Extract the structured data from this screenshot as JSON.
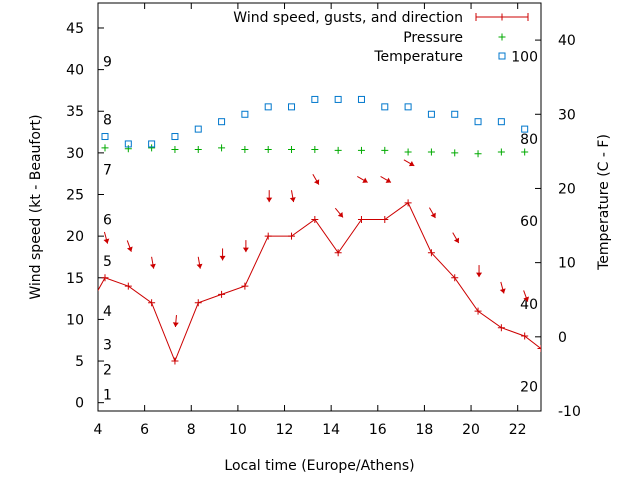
{
  "chart_data": {
    "type": "line",
    "xlabel": "Local time (Europe/Athens)",
    "ylabel": "Wind speed (kt - Beaufort)",
    "y2label": "Temperature (C - F)",
    "xlim": [
      4,
      23
    ],
    "ylim": [
      -1,
      48
    ],
    "y2lim": [
      -10,
      45
    ],
    "x_ticks": [
      4,
      6,
      8,
      10,
      12,
      14,
      16,
      18,
      20,
      22
    ],
    "y_ticks": [
      0,
      5,
      10,
      15,
      20,
      25,
      30,
      35,
      40,
      45
    ],
    "y2_ticks": [
      -10,
      0,
      10,
      20,
      30,
      40
    ],
    "beaufort_labels": [
      {
        "label": "1",
        "kt": 1
      },
      {
        "label": "2",
        "kt": 4
      },
      {
        "label": "3",
        "kt": 7
      },
      {
        "label": "4",
        "kt": 11
      },
      {
        "label": "5",
        "kt": 17
      },
      {
        "label": "6",
        "kt": 22
      },
      {
        "label": "7",
        "kt": 28
      },
      {
        "label": "8",
        "kt": 34
      },
      {
        "label": "9",
        "kt": 41
      }
    ],
    "fahrenheit_labels": [
      {
        "label": "20",
        "celsius": -6.7
      },
      {
        "label": "40",
        "celsius": 4.4
      },
      {
        "label": "60",
        "celsius": 15.6
      },
      {
        "label": "80",
        "celsius": 26.7
      },
      {
        "label": "100",
        "celsius": 37.8
      }
    ],
    "legend_position": "top-right",
    "series": [
      {
        "name": "Wind speed, gusts, and direction",
        "color": "#cc0000",
        "marker": "plus-line",
        "axis": "left",
        "x": [
          3.7,
          4.3,
          5.3,
          6.3,
          7.3,
          8.3,
          9.3,
          10.3,
          11.3,
          12.3,
          13.3,
          14.3,
          15.3,
          16.3,
          17.3,
          18.3,
          19.3,
          20.3,
          21.3,
          22.3,
          23.0
        ],
        "values": [
          12,
          15,
          14,
          12,
          5,
          12,
          13,
          14,
          20,
          20,
          22,
          18,
          22,
          22,
          24,
          18,
          15,
          11,
          9,
          8,
          6.5
        ]
      },
      {
        "name": "Pressure",
        "color": "#00aa00",
        "marker": "plus",
        "axis": "left",
        "x": [
          4.3,
          5.3,
          6.3,
          7.3,
          8.3,
          9.3,
          10.3,
          11.3,
          12.3,
          13.3,
          14.3,
          15.3,
          16.3,
          17.3,
          18.3,
          19.3,
          20.3,
          21.3,
          22.3
        ],
        "values": [
          30.6,
          30.5,
          30.6,
          30.4,
          30.4,
          30.6,
          30.4,
          30.4,
          30.4,
          30.4,
          30.3,
          30.3,
          30.3,
          30.1,
          30.1,
          30.0,
          29.9,
          30.1,
          30.1
        ]
      },
      {
        "name": "Temperature",
        "color": "#0077cc",
        "marker": "square",
        "axis": "right",
        "x": [
          4.3,
          5.3,
          6.3,
          7.3,
          8.3,
          9.3,
          10.3,
          11.3,
          12.3,
          13.3,
          14.3,
          15.3,
          16.3,
          17.3,
          18.3,
          19.3,
          20.3,
          21.3,
          22.3
        ],
        "values": [
          27,
          26,
          26,
          27,
          28,
          29,
          30,
          31,
          31,
          32,
          32,
          32,
          31,
          31,
          30,
          30,
          29,
          29,
          28
        ]
      }
    ],
    "wind_arrows": {
      "color": "#cc0000",
      "x": [
        4.3,
        5.3,
        6.3,
        7.3,
        8.3,
        9.3,
        10.3,
        11.3,
        12.3,
        13.3,
        14.3,
        15.3,
        16.3,
        17.3,
        18.3,
        19.3,
        20.3,
        21.3,
        22.3
      ],
      "direction_deg": [
        345,
        340,
        350,
        5,
        350,
        0,
        0,
        0,
        350,
        330,
        320,
        300,
        300,
        300,
        330,
        330,
        0,
        345,
        340
      ]
    }
  }
}
